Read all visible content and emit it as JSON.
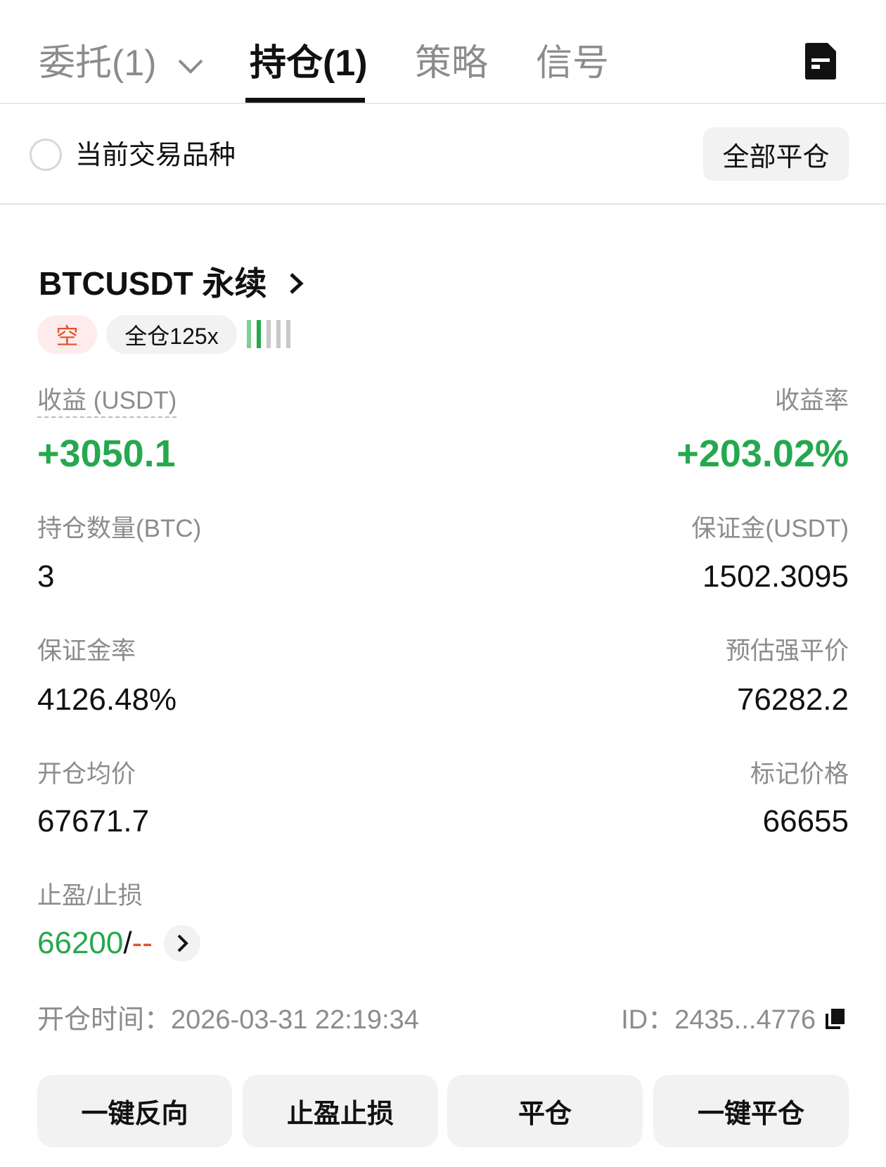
{
  "tabs": [
    {
      "label": "委托(1)",
      "active": false
    },
    {
      "label": "持仓(1)",
      "active": true
    },
    {
      "label": "策略",
      "active": false
    },
    {
      "label": "信号",
      "active": false
    }
  ],
  "filter": {
    "current_symbol_label": "当前交易品种",
    "checked": false,
    "close_all_label": "全部平仓"
  },
  "position": {
    "symbol": "BTCUSDT 永续",
    "side": "空",
    "margin_mode": "全仓125x",
    "risk_level": 2,
    "risk_level_max": 5,
    "pnl_label": "收益 (USDT)",
    "pnl_value": "+3050.1",
    "roi_label": "收益率",
    "roi_value": "+203.02%",
    "size_label": "持仓数量(BTC)",
    "size_value": "3",
    "margin_label": "保证金(USDT)",
    "margin_value": "1502.3095",
    "margin_ratio_label": "保证金率",
    "margin_ratio_value": "4126.48%",
    "liq_price_label": "预估强平价",
    "liq_price_value": "76282.2",
    "entry_price_label": "开仓均价",
    "entry_price_value": "67671.7",
    "mark_price_label": "标记价格",
    "mark_price_value": "66655",
    "tpsl_label": "止盈/止损",
    "tp_value": "66200",
    "tpsl_sep": "/",
    "sl_value": "--",
    "open_time": "开仓时间：2026-03-31 22:19:34",
    "id": "ID：2435...4776"
  },
  "actions": [
    "一键反向",
    "止盈止损",
    "平仓",
    "一键平仓"
  ],
  "colors": {
    "profit": "#25a84e",
    "short": "#e0522c",
    "muted": "#8c8c8c"
  }
}
